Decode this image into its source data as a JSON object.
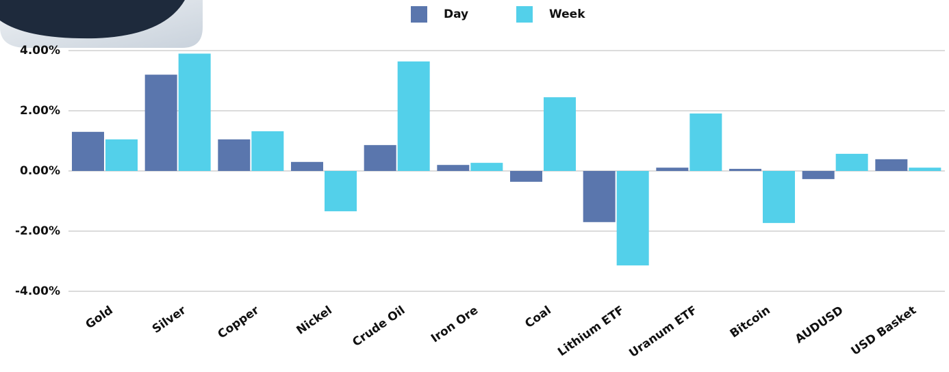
{
  "chart_data": {
    "type": "bar",
    "categories": [
      "Gold",
      "Silver",
      "Copper",
      "Nickel",
      "Crude Oil",
      "Iron Ore",
      "Coal",
      "Lithium ETF",
      "Uranum ETF",
      "Bitcoin",
      "AUDUSD",
      "USD Basket"
    ],
    "series": [
      {
        "name": "Day",
        "color": "#5a76ad",
        "values": [
          1.3,
          3.2,
          1.05,
          0.3,
          0.86,
          0.2,
          -0.36,
          -1.7,
          0.11,
          0.07,
          -0.27,
          0.39
        ]
      },
      {
        "name": "Week",
        "color": "#53d0ea",
        "values": [
          1.05,
          3.9,
          1.32,
          -1.34,
          3.64,
          0.27,
          2.45,
          -3.14,
          1.91,
          -1.73,
          0.57,
          0.11
        ]
      }
    ],
    "ylim": [
      -4,
      4
    ],
    "yticks": [
      {
        "value": -4,
        "label": "-4.00%"
      },
      {
        "value": -2,
        "label": "-2.00%"
      },
      {
        "value": 0,
        "label": "0.00%"
      },
      {
        "value": 2,
        "label": "2.00%"
      },
      {
        "value": 4,
        "label": "4.00%"
      }
    ],
    "grid": true,
    "legend": "top"
  }
}
